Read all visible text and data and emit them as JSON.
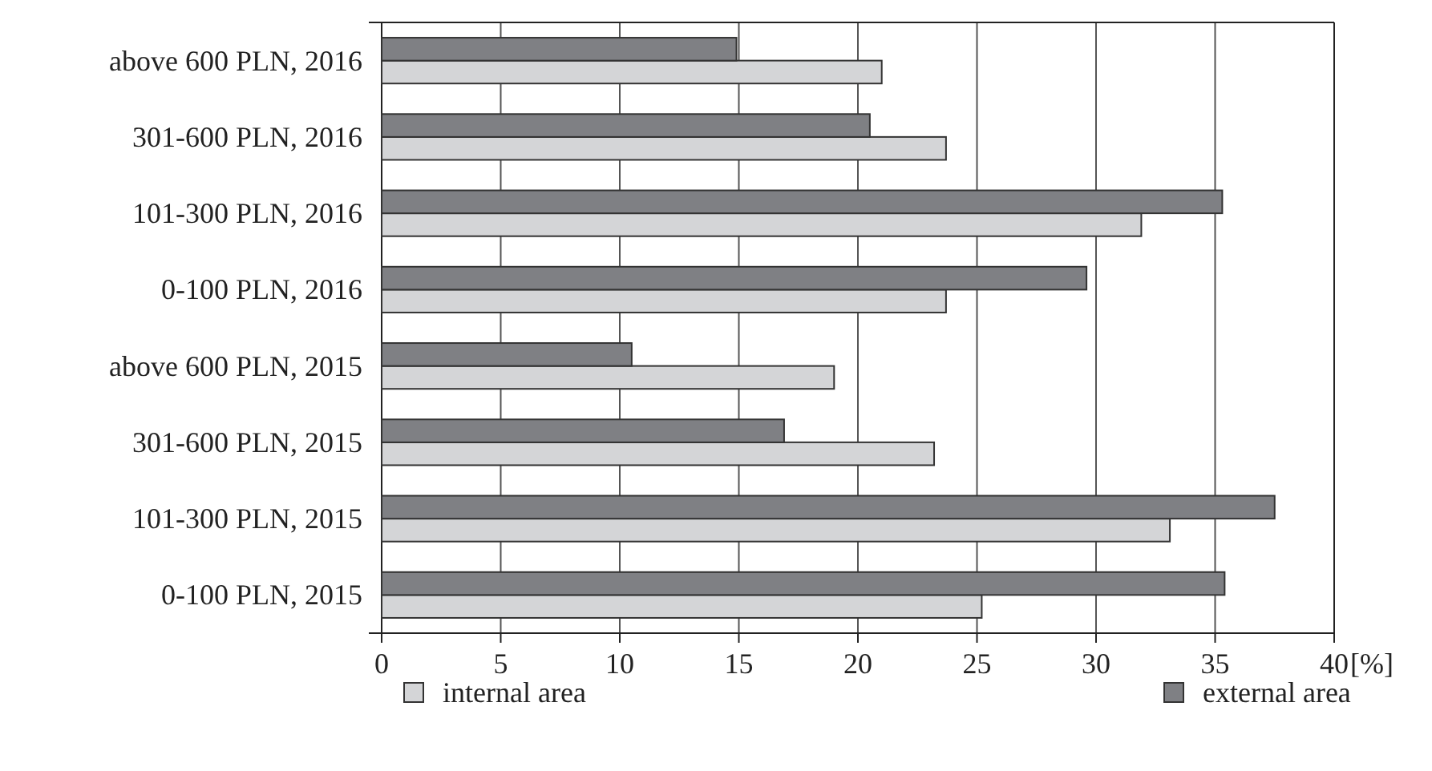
{
  "chart_data": {
    "type": "bar",
    "orientation": "horizontal",
    "categories": [
      "above 600 PLN, 2016",
      "301-600 PLN, 2016",
      "101-300 PLN, 2016",
      "0-100 PLN, 2016",
      "above 600 PLN, 2015",
      "301-600 PLN, 2015",
      "101-300 PLN, 2015",
      "0-100 PLN, 2015"
    ],
    "series": [
      {
        "name": "internal area",
        "color": "#d4d5d7",
        "values": [
          21.0,
          23.7,
          31.9,
          23.7,
          19.0,
          23.2,
          33.1,
          25.2
        ]
      },
      {
        "name": "external area",
        "color": "#7f8084",
        "values": [
          14.9,
          20.5,
          35.3,
          29.6,
          10.5,
          16.9,
          37.5,
          35.4
        ]
      }
    ],
    "xlim": [
      0,
      40
    ],
    "xticks": [
      0,
      5,
      10,
      15,
      20,
      25,
      30,
      35,
      40
    ],
    "xlabel": "[%]",
    "grid": "x",
    "legend": "bottom"
  }
}
